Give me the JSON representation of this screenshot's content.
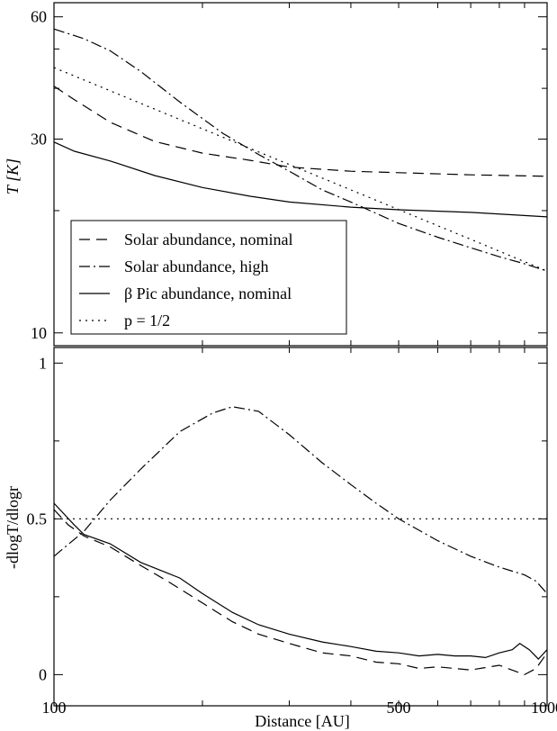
{
  "chart_data": [
    {
      "type": "line",
      "ylabel": "T [K]",
      "xscale": "log",
      "yscale": "log",
      "xlim": [
        100,
        1000
      ],
      "ylim": [
        9.3,
        65
      ],
      "yticks": [
        {
          "value": 10,
          "label": "10"
        },
        {
          "value": 30,
          "label": "30"
        },
        {
          "value": 60,
          "label": "60"
        }
      ],
      "legend_position": "bottom-left",
      "series": [
        {
          "name": "Solar abundance, nominal",
          "dash": "dash",
          "points": [
            [
              100,
              40.5
            ],
            [
              110,
              37.5
            ],
            [
              130,
              33
            ],
            [
              160,
              29.6
            ],
            [
              200,
              27.7
            ],
            [
              250,
              26.6
            ],
            [
              300,
              25.6
            ],
            [
              400,
              25
            ],
            [
              500,
              24.8
            ],
            [
              700,
              24.5
            ],
            [
              1000,
              24.3
            ]
          ]
        },
        {
          "name": "Solar abundance, high",
          "dash": "dashdot",
          "points": [
            [
              100,
              56
            ],
            [
              115,
              53
            ],
            [
              130,
              49.5
            ],
            [
              150,
              44
            ],
            [
              180,
              37
            ],
            [
              220,
              31
            ],
            [
              260,
              27.5
            ],
            [
              300,
              25
            ],
            [
              350,
              22.5
            ],
            [
              400,
              21
            ],
            [
              500,
              18.6
            ],
            [
              600,
              17.2
            ],
            [
              700,
              16.2
            ],
            [
              800,
              15.4
            ],
            [
              900,
              14.8
            ],
            [
              1000,
              14.2
            ]
          ]
        },
        {
          "name": "β Pic abundance, nominal",
          "dash": "solid",
          "points": [
            [
              100,
              29.5
            ],
            [
              110,
              28
            ],
            [
              130,
              26.5
            ],
            [
              160,
              24.4
            ],
            [
              200,
              22.8
            ],
            [
              250,
              21.7
            ],
            [
              300,
              21
            ],
            [
              400,
              20.4
            ],
            [
              500,
              20.1
            ],
            [
              700,
              19.8
            ],
            [
              1000,
              19.3
            ]
          ]
        },
        {
          "name": "p = 1/2",
          "dash": "dot",
          "points": [
            [
              100,
              45
            ],
            [
              200,
              31.8
            ],
            [
              400,
              22.5
            ],
            [
              700,
              17
            ],
            [
              1000,
              14.2
            ]
          ]
        }
      ]
    },
    {
      "type": "line",
      "ylabel": "-dlogT/dlogr",
      "xlabel": "Distance [AU]",
      "xscale": "log",
      "xlim": [
        100,
        1000
      ],
      "ylim": [
        -0.1,
        1.05
      ],
      "xticks": [
        {
          "value": 100,
          "label": "100"
        },
        {
          "value": 500,
          "label": "500"
        },
        {
          "value": 1000,
          "label": "1000"
        }
      ],
      "yticks": [
        {
          "value": 0,
          "label": "0"
        },
        {
          "value": 0.5,
          "label": "0.5"
        },
        {
          "value": 1,
          "label": "1"
        }
      ],
      "series": [
        {
          "name": "Solar abundance, nominal",
          "dash": "dash",
          "points": [
            [
              100,
              0.53
            ],
            [
              107,
              0.48
            ],
            [
              115,
              0.445
            ],
            [
              130,
              0.41
            ],
            [
              150,
              0.35
            ],
            [
              170,
              0.3
            ],
            [
              200,
              0.23
            ],
            [
              230,
              0.17
            ],
            [
              260,
              0.13
            ],
            [
              300,
              0.1
            ],
            [
              350,
              0.07
            ],
            [
              400,
              0.06
            ],
            [
              450,
              0.04
            ],
            [
              500,
              0.035
            ],
            [
              550,
              0.02
            ],
            [
              600,
              0.025
            ],
            [
              700,
              0.015
            ],
            [
              800,
              0.03
            ],
            [
              900,
              0.0
            ],
            [
              950,
              0.02
            ],
            [
              1000,
              0.07
            ]
          ]
        },
        {
          "name": "Solar abundance, high",
          "dash": "dashdot",
          "points": [
            [
              100,
              0.38
            ],
            [
              115,
              0.46
            ],
            [
              130,
              0.56
            ],
            [
              150,
              0.66
            ],
            [
              180,
              0.78
            ],
            [
              210,
              0.84
            ],
            [
              230,
              0.86
            ],
            [
              260,
              0.845
            ],
            [
              300,
              0.77
            ],
            [
              350,
              0.68
            ],
            [
              400,
              0.61
            ],
            [
              450,
              0.55
            ],
            [
              500,
              0.5
            ],
            [
              600,
              0.43
            ],
            [
              700,
              0.38
            ],
            [
              800,
              0.345
            ],
            [
              900,
              0.32
            ],
            [
              950,
              0.3
            ],
            [
              1000,
              0.26
            ]
          ]
        },
        {
          "name": "β Pic abundance, nominal",
          "dash": "solid",
          "points": [
            [
              100,
              0.55
            ],
            [
              110,
              0.48
            ],
            [
              115,
              0.45
            ],
            [
              130,
              0.42
            ],
            [
              150,
              0.36
            ],
            [
              180,
              0.31
            ],
            [
              200,
              0.26
            ],
            [
              230,
              0.2
            ],
            [
              260,
              0.16
            ],
            [
              300,
              0.13
            ],
            [
              350,
              0.105
            ],
            [
              400,
              0.09
            ],
            [
              450,
              0.075
            ],
            [
              500,
              0.07
            ],
            [
              550,
              0.06
            ],
            [
              600,
              0.065
            ],
            [
              650,
              0.06
            ],
            [
              700,
              0.06
            ],
            [
              750,
              0.055
            ],
            [
              800,
              0.07
            ],
            [
              850,
              0.08
            ],
            [
              880,
              0.1
            ],
            [
              920,
              0.08
            ],
            [
              960,
              0.05
            ],
            [
              1000,
              0.08
            ]
          ]
        },
        {
          "name": "p = 1/2",
          "dash": "dot",
          "points": [
            [
              100,
              0.5
            ],
            [
              1000,
              0.5
            ]
          ]
        }
      ]
    }
  ]
}
